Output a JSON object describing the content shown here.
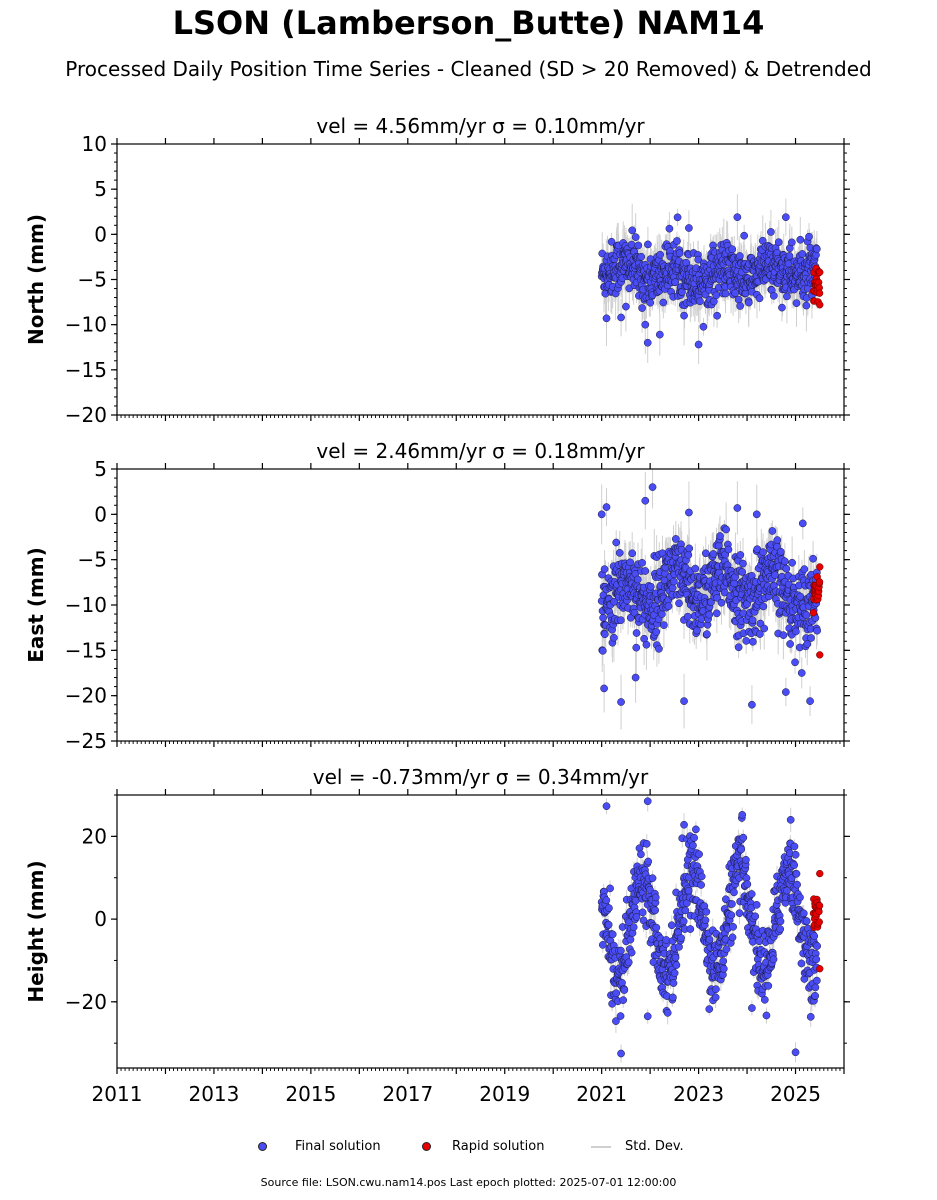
{
  "title": "LSON (Lamberson_Butte) NAM14",
  "subtitle": "Processed Daily Position Time Series - Cleaned (SD > 20 Removed) & Detrended",
  "legend": {
    "final": {
      "label": "Final solution",
      "color": "#4a4cf5"
    },
    "rapid": {
      "label": "Rapid solution",
      "color": "#e60000"
    },
    "std": {
      "label": "Std. Dev.",
      "color": "#d0d0d0"
    }
  },
  "source": "Source file: LSON.cwu.nam14.pos  Last epoch plotted: 2025-07-01 12:00:00",
  "chart_data": [
    {
      "type": "scatter",
      "title": "vel = 4.56mm/yr   σ = 0.10mm/yr",
      "ylabel": "North (mm)",
      "xlim": [
        2011,
        2026
      ],
      "ylim": [
        -20,
        10
      ],
      "yticks": [
        10,
        5,
        0,
        -5,
        -10,
        -15,
        -20
      ],
      "ytick_labels": [
        "10",
        "5",
        "0",
        "−5",
        "−10",
        "−15",
        "−20"
      ],
      "x_range": [
        2021.0,
        2025.45
      ],
      "rapid_x_range": [
        2025.37,
        2025.5
      ],
      "final_baseline": [
        [
          2021.0,
          -3.5
        ],
        [
          2022.0,
          -4.3
        ],
        [
          2023.0,
          -4.6
        ],
        [
          2024.0,
          -4.4
        ],
        [
          2025.0,
          -3.8
        ],
        [
          2025.45,
          -4.8
        ]
      ],
      "rapid_center": -5.8,
      "seasonal_amplitude": 0.7,
      "scatter_sd": 1.5,
      "outliers": [
        [
          2021.1,
          -9.3
        ],
        [
          2021.4,
          -9.2
        ],
        [
          2021.5,
          -8.0
        ],
        [
          2021.9,
          -10.0
        ],
        [
          2021.95,
          -12.0
        ],
        [
          2022.2,
          -11.1
        ],
        [
          2022.7,
          -9.0
        ],
        [
          2023.0,
          -12.2
        ],
        [
          2022.8,
          0.7
        ],
        [
          2023.8,
          1.9
        ],
        [
          2024.8,
          1.9
        ]
      ],
      "rapid_extremes": [
        -4.2,
        -7.8
      ]
    },
    {
      "type": "scatter",
      "title": "vel = 2.46mm/yr   σ = 0.18mm/yr",
      "ylabel": "East (mm)",
      "xlim": [
        2011,
        2026
      ],
      "ylim": [
        -25,
        5
      ],
      "yticks": [
        5,
        0,
        -5,
        -10,
        -15,
        -20,
        -25
      ],
      "ytick_labels": [
        "5",
        "0",
        "−5",
        "−10",
        "−15",
        "−20",
        "−25"
      ],
      "x_range": [
        2021.0,
        2025.45
      ],
      "rapid_x_range": [
        2025.37,
        2025.5
      ],
      "final_baseline": [
        [
          2021.0,
          -9.5
        ],
        [
          2022.0,
          -8.5
        ],
        [
          2023.0,
          -8.0
        ],
        [
          2024.0,
          -8.2
        ],
        [
          2025.0,
          -8.5
        ],
        [
          2025.45,
          -10.5
        ]
      ],
      "rapid_center": -8.5,
      "seasonal_amplitude": 1.6,
      "scatter_sd": 2.2,
      "outliers": [
        [
          2021.0,
          0.0
        ],
        [
          2021.1,
          0.8
        ],
        [
          2021.05,
          -19.2
        ],
        [
          2021.4,
          -20.7
        ],
        [
          2021.9,
          1.5
        ],
        [
          2022.05,
          3.0
        ],
        [
          2022.7,
          -20.6
        ],
        [
          2022.8,
          0.2
        ],
        [
          2023.8,
          0.7
        ],
        [
          2024.2,
          0.0
        ],
        [
          2024.1,
          -21.0
        ],
        [
          2024.8,
          -19.6
        ],
        [
          2025.3,
          -20.6
        ],
        [
          2025.15,
          -1.0
        ],
        [
          2021.7,
          -18.0
        ]
      ],
      "rapid_extremes": [
        -5.8,
        -15.5
      ]
    },
    {
      "type": "scatter",
      "title": "vel = -0.73mm/yr   σ = 0.34mm/yr",
      "ylabel": "Height (mm)",
      "xlim": [
        2011,
        2026
      ],
      "ylim": [
        -36,
        30
      ],
      "yticks": [
        20,
        0,
        -20
      ],
      "ytick_labels": [
        "20",
        "0",
        "−20"
      ],
      "x_range": [
        2021.0,
        2025.45
      ],
      "rapid_x_range": [
        2025.37,
        2025.5
      ],
      "final_baseline": [
        [
          2021.0,
          -2.0
        ],
        [
          2023.0,
          0.0
        ],
        [
          2025.45,
          0.0
        ]
      ],
      "rapid_center": 1.0,
      "seasonal_amplitude": 12.0,
      "seasonal_phase_year": 2021.6,
      "scatter_sd": 4.5,
      "outliers": [
        [
          2021.1,
          27.3
        ],
        [
          2021.4,
          -32.5
        ],
        [
          2021.95,
          28.5
        ],
        [
          2022.7,
          22.8
        ],
        [
          2023.9,
          25.2
        ],
        [
          2024.4,
          -23.3
        ],
        [
          2024.9,
          24.0
        ],
        [
          2025.0,
          -32.2
        ],
        [
          2024.1,
          -21.5
        ],
        [
          2021.95,
          -23.5
        ]
      ],
      "rapid_extremes": [
        11.0,
        -12.0
      ]
    }
  ],
  "xticks": [
    2011,
    2013,
    2015,
    2017,
    2019,
    2021,
    2023,
    2025
  ]
}
